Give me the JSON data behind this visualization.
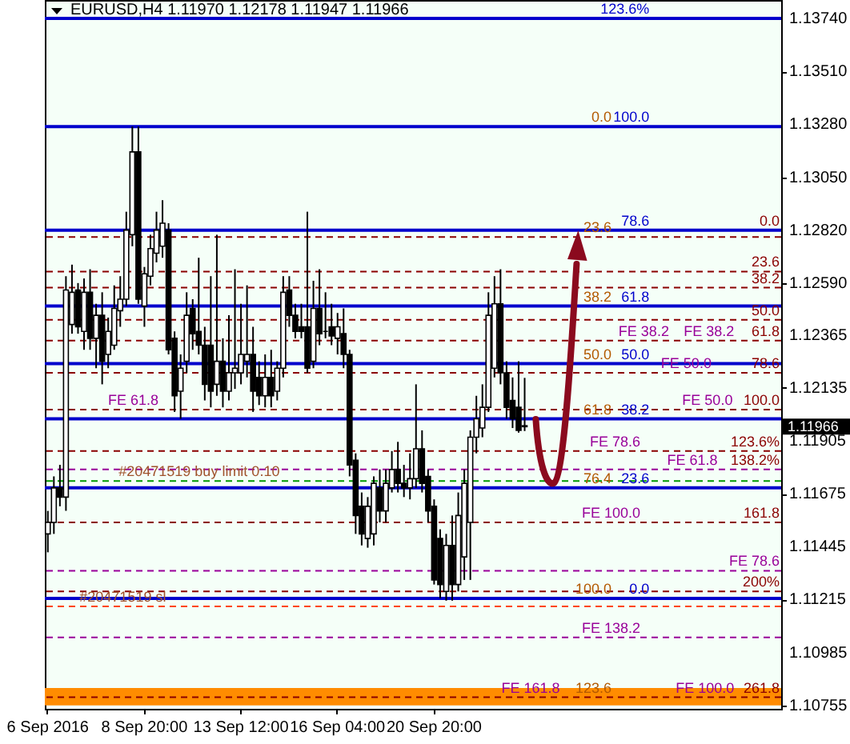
{
  "chart_data": {
    "type": "candlestick",
    "title": "EURUSD,H4  1.11970 1.12178 1.11947 1.11966",
    "categories": [
      "6 Sep 2016",
      null,
      null,
      null,
      null,
      null,
      null,
      null,
      null,
      null,
      null,
      null,
      null,
      null,
      null,
      null,
      "8 Sep 20:00",
      null,
      null,
      null,
      null,
      null,
      null,
      null,
      null,
      null,
      null,
      null,
      null,
      null,
      null,
      null,
      "13 Sep 12:00",
      null,
      null,
      null,
      null,
      null,
      null,
      null,
      null,
      null,
      null,
      null,
      null,
      null,
      null,
      null,
      "16 Sep 04:00",
      null,
      null,
      null,
      null,
      null,
      null,
      null,
      null,
      null,
      null,
      null,
      null,
      null,
      null,
      null,
      "20 Sep 20:00",
      null,
      null,
      null,
      null,
      null,
      null,
      null,
      null,
      null,
      null,
      null,
      null,
      null,
      null,
      null,
      null,
      null,
      null,
      null,
      null,
      null,
      null,
      null,
      null,
      null,
      null,
      null,
      null,
      null,
      null,
      null,
      null,
      null,
      null,
      null,
      null,
      null,
      null,
      null,
      null,
      null,
      null,
      null,
      null,
      null,
      null,
      null,
      null,
      null,
      null,
      null,
      null,
      null,
      null,
      null,
      null,
      null
    ],
    "ohlc": [
      [
        1.115,
        1.116,
        1.1142,
        1.1155
      ],
      [
        1.1155,
        1.1175,
        1.115,
        1.117
      ],
      [
        1.117,
        1.118,
        1.1162,
        1.1166
      ],
      [
        1.1166,
        1.1262,
        1.116,
        1.1256
      ],
      [
        1.1241,
        1.1267,
        1.1237,
        1.1255
      ],
      [
        1.1256,
        1.1259,
        1.1237,
        1.124
      ],
      [
        1.1238,
        1.1261,
        1.123,
        1.1255
      ],
      [
        1.1255,
        1.1265,
        1.123,
        1.1235
      ],
      [
        1.1235,
        1.125,
        1.1222,
        1.1245
      ],
      [
        1.1245,
        1.1255,
        1.1215,
        1.1225
      ],
      [
        1.1228,
        1.1244,
        1.1222,
        1.1238
      ],
      [
        1.1232,
        1.1258,
        1.123,
        1.1248
      ],
      [
        1.1247,
        1.1262,
        1.124,
        1.1252
      ],
      [
        1.1252,
        1.129,
        1.1249,
        1.1282
      ],
      [
        1.128,
        1.1327,
        1.1275,
        1.1316
      ],
      [
        1.1316,
        1.1327,
        1.125,
        1.1252
      ],
      [
        1.1249,
        1.1266,
        1.124,
        1.1263
      ],
      [
        1.1262,
        1.128,
        1.1258,
        1.1274
      ],
      [
        1.1272,
        1.129,
        1.1268,
        1.1282
      ],
      [
        1.1275,
        1.1295,
        1.127,
        1.1285
      ],
      [
        1.1282,
        1.1285,
        1.1228,
        1.123
      ],
      [
        1.1235,
        1.1238,
        1.1203,
        1.121
      ],
      [
        1.1212,
        1.1228,
        1.12,
        1.1222
      ],
      [
        1.1225,
        1.1255,
        1.122,
        1.1245
      ],
      [
        1.1248,
        1.1252,
        1.123,
        1.1237
      ],
      [
        1.1238,
        1.127,
        1.1228,
        1.1232
      ],
      [
        1.1232,
        1.124,
        1.1208,
        1.1215
      ],
      [
        1.1232,
        1.1262,
        1.1205,
        1.1212
      ],
      [
        1.1215,
        1.128,
        1.121,
        1.1225
      ],
      [
        1.1225,
        1.1235,
        1.1205,
        1.1212
      ],
      [
        1.1212,
        1.1245,
        1.1208,
        1.122
      ],
      [
        1.122,
        1.1265,
        1.1213,
        1.1222
      ],
      [
        1.122,
        1.125,
        1.1215,
        1.1228
      ],
      [
        1.1225,
        1.1258,
        1.1218,
        1.1228
      ],
      [
        1.1228,
        1.124,
        1.1203,
        1.1212
      ],
      [
        1.1218,
        1.1225,
        1.1206,
        1.121
      ],
      [
        1.121,
        1.1228,
        1.1205,
        1.1218
      ],
      [
        1.1218,
        1.123,
        1.1205,
        1.121
      ],
      [
        1.1212,
        1.1225,
        1.1208,
        1.1222
      ],
      [
        1.1222,
        1.1262,
        1.1218,
        1.1255
      ],
      [
        1.1256,
        1.1262,
        1.124,
        1.1245
      ],
      [
        1.1245,
        1.125,
        1.1235,
        1.1238
      ],
      [
        1.124,
        1.125,
        1.1235,
        1.1238
      ],
      [
        1.124,
        1.129,
        1.122,
        1.1222
      ],
      [
        1.1225,
        1.126,
        1.1222,
        1.1248
      ],
      [
        1.1248,
        1.1265,
        1.1232,
        1.1237
      ],
      [
        1.1238,
        1.1255,
        1.1235,
        1.1238
      ],
      [
        1.124,
        1.125,
        1.1232,
        1.1236
      ],
      [
        1.1235,
        1.1246,
        1.1228,
        1.124
      ],
      [
        1.1237,
        1.1248,
        1.1222,
        1.1228
      ],
      [
        1.1228,
        1.123,
        1.1175,
        1.118
      ],
      [
        1.1182,
        1.1185,
        1.115,
        1.1158
      ],
      [
        1.1162,
        1.1168,
        1.1145,
        1.115
      ],
      [
        1.1148,
        1.1166,
        1.1144,
        1.1162
      ],
      [
        1.115,
        1.1175,
        1.1145,
        1.1172
      ],
      [
        1.117,
        1.1178,
        1.1155,
        1.116
      ],
      [
        1.116,
        1.1178,
        1.1155,
        1.1172
      ],
      [
        1.117,
        1.1186,
        1.1168,
        1.1178
      ],
      [
        1.1178,
        1.119,
        1.1168,
        1.1172
      ],
      [
        1.1172,
        1.118,
        1.1166,
        1.117
      ],
      [
        1.117,
        1.1185,
        1.1165,
        1.1174
      ],
      [
        1.1174,
        1.1215,
        1.117,
        1.1187
      ],
      [
        1.1187,
        1.1195,
        1.1168,
        1.1172
      ],
      [
        1.1175,
        1.1178,
        1.1155,
        1.116
      ],
      [
        1.1162,
        1.1165,
        1.1128,
        1.113
      ],
      [
        1.1148,
        1.1152,
        1.1122,
        1.1128
      ],
      [
        1.1125,
        1.115,
        1.1121,
        1.1145
      ],
      [
        1.1145,
        1.1158,
        1.1121,
        1.1128
      ],
      [
        1.1128,
        1.1168,
        1.1125,
        1.1158
      ],
      [
        1.114,
        1.1178,
        1.113,
        1.1172
      ],
      [
        1.1155,
        1.1195,
        1.113,
        1.1192
      ],
      [
        1.1192,
        1.121,
        1.1185,
        1.12
      ],
      [
        1.1196,
        1.1215,
        1.1192,
        1.1205
      ],
      [
        1.1205,
        1.1255,
        1.1203,
        1.1245
      ],
      [
        1.1222,
        1.1262,
        1.1218,
        1.125
      ],
      [
        1.125,
        1.1265,
        1.1215,
        1.122
      ],
      [
        1.122,
        1.1225,
        1.12,
        1.1205
      ],
      [
        1.1208,
        1.1218,
        1.1196,
        1.12
      ],
      [
        1.1205,
        1.1225,
        1.1194,
        1.1195
      ],
      [
        1.1197,
        1.12178,
        1.11947,
        1.11966
      ],
      null,
      null,
      null,
      null,
      null,
      null,
      null,
      null,
      null,
      null,
      null,
      null,
      null,
      null,
      null,
      null,
      null,
      null,
      null,
      null,
      null,
      null,
      null,
      null,
      null,
      null,
      null,
      null,
      null,
      null,
      null,
      null,
      null,
      null,
      null,
      null,
      null,
      null,
      null,
      null,
      null,
      null
    ],
    "ylim": [
      1.1074,
      1.1382
    ],
    "yticks": [
      {
        "value": 1.1374,
        "label": "1.13740"
      },
      {
        "value": 1.1351,
        "label": "1.13510"
      },
      {
        "value": 1.1328,
        "label": "1.13280"
      },
      {
        "value": 1.1305,
        "label": "1.13050"
      },
      {
        "value": 1.1282,
        "label": "1.12820"
      },
      {
        "value": 1.1259,
        "label": "1.12590"
      },
      {
        "value": 1.12365,
        "label": "1.12365"
      },
      {
        "value": 1.12135,
        "label": "1.12135"
      },
      {
        "value": 1.11905,
        "label": "1.11905"
      },
      {
        "value": 1.11675,
        "label": "1.11675"
      },
      {
        "value": 1.11445,
        "label": "1.11445"
      },
      {
        "value": 1.11215,
        "label": "1.11215"
      },
      {
        "value": 1.10985,
        "label": "1.10985"
      },
      {
        "value": 1.10755,
        "label": "1.10755"
      }
    ],
    "bands": [
      {
        "axis": "y",
        "from": 1.10755,
        "to": 1.1083,
        "color": "#ff8c00"
      }
    ],
    "ref_lines": [
      {
        "axis": "y",
        "value": 1.1374,
        "color": "#0000cc",
        "line_style": "solid"
      },
      {
        "axis": "y",
        "value": 1.1327,
        "color": "#0000cc",
        "line_style": "solid"
      },
      {
        "axis": "y",
        "value": 1.1282,
        "color": "#0000cc",
        "line_style": "solid"
      },
      {
        "axis": "y",
        "value": 1.1249,
        "color": "#0000cc",
        "line_style": "solid"
      },
      {
        "axis": "y",
        "value": 1.1224,
        "color": "#0000cc",
        "line_style": "solid"
      },
      {
        "axis": "y",
        "value": 1.12,
        "color": "#0000cc",
        "line_style": "solid"
      },
      {
        "axis": "y",
        "value": 1.117,
        "color": "#0000cc",
        "line_style": "solid"
      },
      {
        "axis": "y",
        "value": 1.1122,
        "color": "#0000cc",
        "line_style": "solid"
      },
      {
        "axis": "y",
        "value": 1.1279,
        "color": "#8b0000",
        "line_style": "dashed"
      },
      {
        "axis": "y",
        "value": 1.1264,
        "color": "#8b0000",
        "line_style": "dashed"
      },
      {
        "axis": "y",
        "value": 1.1257,
        "color": "#8b0000",
        "line_style": "dashed"
      },
      {
        "axis": "y",
        "value": 1.1243,
        "color": "#8b0000",
        "line_style": "dashed"
      },
      {
        "axis": "y",
        "value": 1.1234,
        "color": "#8b0000",
        "line_style": "dashed"
      },
      {
        "axis": "y",
        "value": 1.122,
        "color": "#8b0000",
        "line_style": "dashed"
      },
      {
        "axis": "y",
        "value": 1.1204,
        "color": "#8b0000",
        "line_style": "dashed"
      },
      {
        "axis": "y",
        "value": 1.1186,
        "color": "#8b0000",
        "line_style": "dashed"
      },
      {
        "axis": "y",
        "value": 1.1155,
        "color": "#8b0000",
        "line_style": "dashed"
      },
      {
        "axis": "y",
        "value": 1.1125,
        "color": "#8b0000",
        "line_style": "dashed"
      },
      {
        "axis": "y",
        "value": 1.1079,
        "color": "#8b0000",
        "line_style": "dashed"
      },
      {
        "axis": "y",
        "value": 1.1178,
        "color": "#990099",
        "line_style": "dashed"
      },
      {
        "axis": "y",
        "value": 1.1134,
        "color": "#990099",
        "line_style": "dashed"
      },
      {
        "axis": "y",
        "value": 1.1105,
        "color": "#990099",
        "line_style": "dashed"
      },
      {
        "axis": "y",
        "value": 1.1173,
        "color": "#009900",
        "line_style": "dashed"
      },
      {
        "axis": "y",
        "value": 1.11185,
        "color": "#ff4500",
        "line_style": "dashed"
      }
    ],
    "annotations": [
      {
        "text": "123.6%",
        "y": 1.1374
      },
      {
        "text": "100.0",
        "y": 1.1327
      },
      {
        "text": "78.6",
        "y": 1.1282
      },
      {
        "text": "61.8",
        "y": 1.1249
      },
      {
        "text": "50.0",
        "y": 1.1224
      },
      {
        "text": "38.2",
        "y": 1.12
      },
      {
        "text": "23.6",
        "y": 1.117
      },
      {
        "text": "0.0",
        "y": 1.1122
      },
      {
        "text": "0.0",
        "y": 1.1327
      },
      {
        "text": "23.6",
        "y": 1.1279
      },
      {
        "text": "38.2",
        "y": 1.1249
      },
      {
        "text": "50.0",
        "y": 1.1224
      },
      {
        "text": "61.8",
        "y": 1.12
      },
      {
        "text": "76.4",
        "y": 1.117
      },
      {
        "text": "100.0",
        "y": 1.1122
      },
      {
        "text": "123.6",
        "y": 1.1079
      },
      {
        "text": "FE 38.2",
        "y": 1.1234
      },
      {
        "text": "FE 50.0",
        "y": 1.122
      },
      {
        "text": "FE 61.8",
        "y": 1.1204
      },
      {
        "text": "FE 78.6",
        "y": 1.1186
      },
      {
        "text": "FE 100.0",
        "y": 1.1155
      },
      {
        "text": "FE 138.2",
        "y": 1.1105
      },
      {
        "text": "FE 161.8",
        "y": 1.1079
      },
      {
        "text": "#20471519 buy limit 0.10",
        "y": 1.1173
      },
      {
        "text": "#20471519 sl",
        "y": 1.11185
      },
      {
        "text": "0.0",
        "y": 1.1282
      },
      {
        "text": "23.6",
        "y": 1.1264
      },
      {
        "text": "38.2",
        "y": 1.1257
      },
      {
        "text": "50.0",
        "y": 1.1243
      },
      {
        "text": "61.8",
        "y": 1.1234
      },
      {
        "text": "78.6",
        "y": 1.122
      },
      {
        "text": "100.0",
        "y": 1.1204
      },
      {
        "text": "123.6%",
        "y": 1.1186
      },
      {
        "text": "138.2%",
        "y": 1.1178
      },
      {
        "text": "161.8",
        "y": 1.1155
      },
      {
        "text": "200%",
        "y": 1.1125
      },
      {
        "text": "261.8",
        "y": 1.1079
      },
      {
        "text": "FE 38.2",
        "y": 1.1234
      },
      {
        "text": "FE 50.0",
        "y": 1.1204
      },
      {
        "text": "FE 61.8",
        "y": 1.1178
      },
      {
        "text": "FE 78.6",
        "y": 1.1134
      },
      {
        "text": "FE 100.0",
        "y": 1.1079
      },
      "1.11966"
    ]
  }
}
